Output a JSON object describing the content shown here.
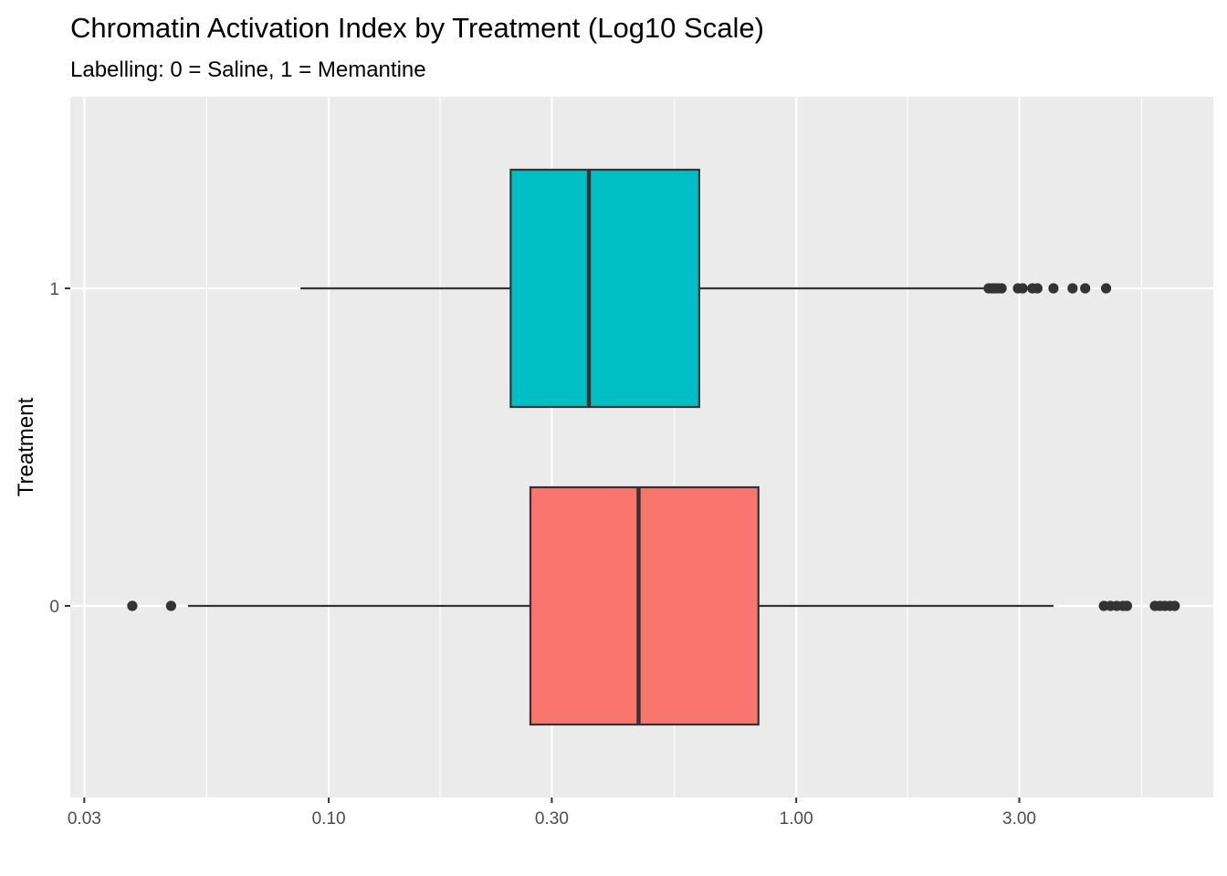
{
  "chart_data": {
    "type": "boxplot",
    "title": "Chromatin Activation Index by Treatment (Log10 Scale)",
    "subtitle": "Labelling: 0 = Saline, 1 = Memantine",
    "xlabel": "",
    "ylabel": "Treatment",
    "x_scale": "log10",
    "xlim": [
      0.028,
      7.8
    ],
    "x_ticks": [
      {
        "value": 0.03,
        "label": "0.03"
      },
      {
        "value": 0.1,
        "label": "0.10"
      },
      {
        "value": 0.3,
        "label": "0.30"
      },
      {
        "value": 1.0,
        "label": "1.00"
      },
      {
        "value": 3.0,
        "label": "3.00"
      }
    ],
    "x_minor_grid": [
      0.0548,
      0.173,
      0.548,
      1.73,
      5.48
    ],
    "grid": true,
    "legend": "none",
    "categories": [
      "0",
      "1"
    ],
    "series": [
      {
        "category": "0",
        "color": "#F8766D",
        "whisker_low": 0.05,
        "q1": 0.27,
        "median": 0.46,
        "q3": 0.83,
        "whisker_high": 3.55,
        "outliers": [
          0.038,
          0.046,
          4.55,
          4.7,
          4.85,
          5.0,
          5.1,
          5.85,
          6.0,
          6.15,
          6.3,
          6.45
        ]
      },
      {
        "category": "1",
        "color": "#00BFC4",
        "whisker_low": 0.087,
        "q1": 0.245,
        "median": 0.36,
        "q3": 0.62,
        "whisker_high": 2.55,
        "outliers": [
          2.58,
          2.62,
          2.66,
          2.7,
          2.75,
          2.98,
          3.05,
          3.2,
          3.28,
          3.55,
          3.9,
          4.15,
          4.6
        ]
      }
    ]
  }
}
